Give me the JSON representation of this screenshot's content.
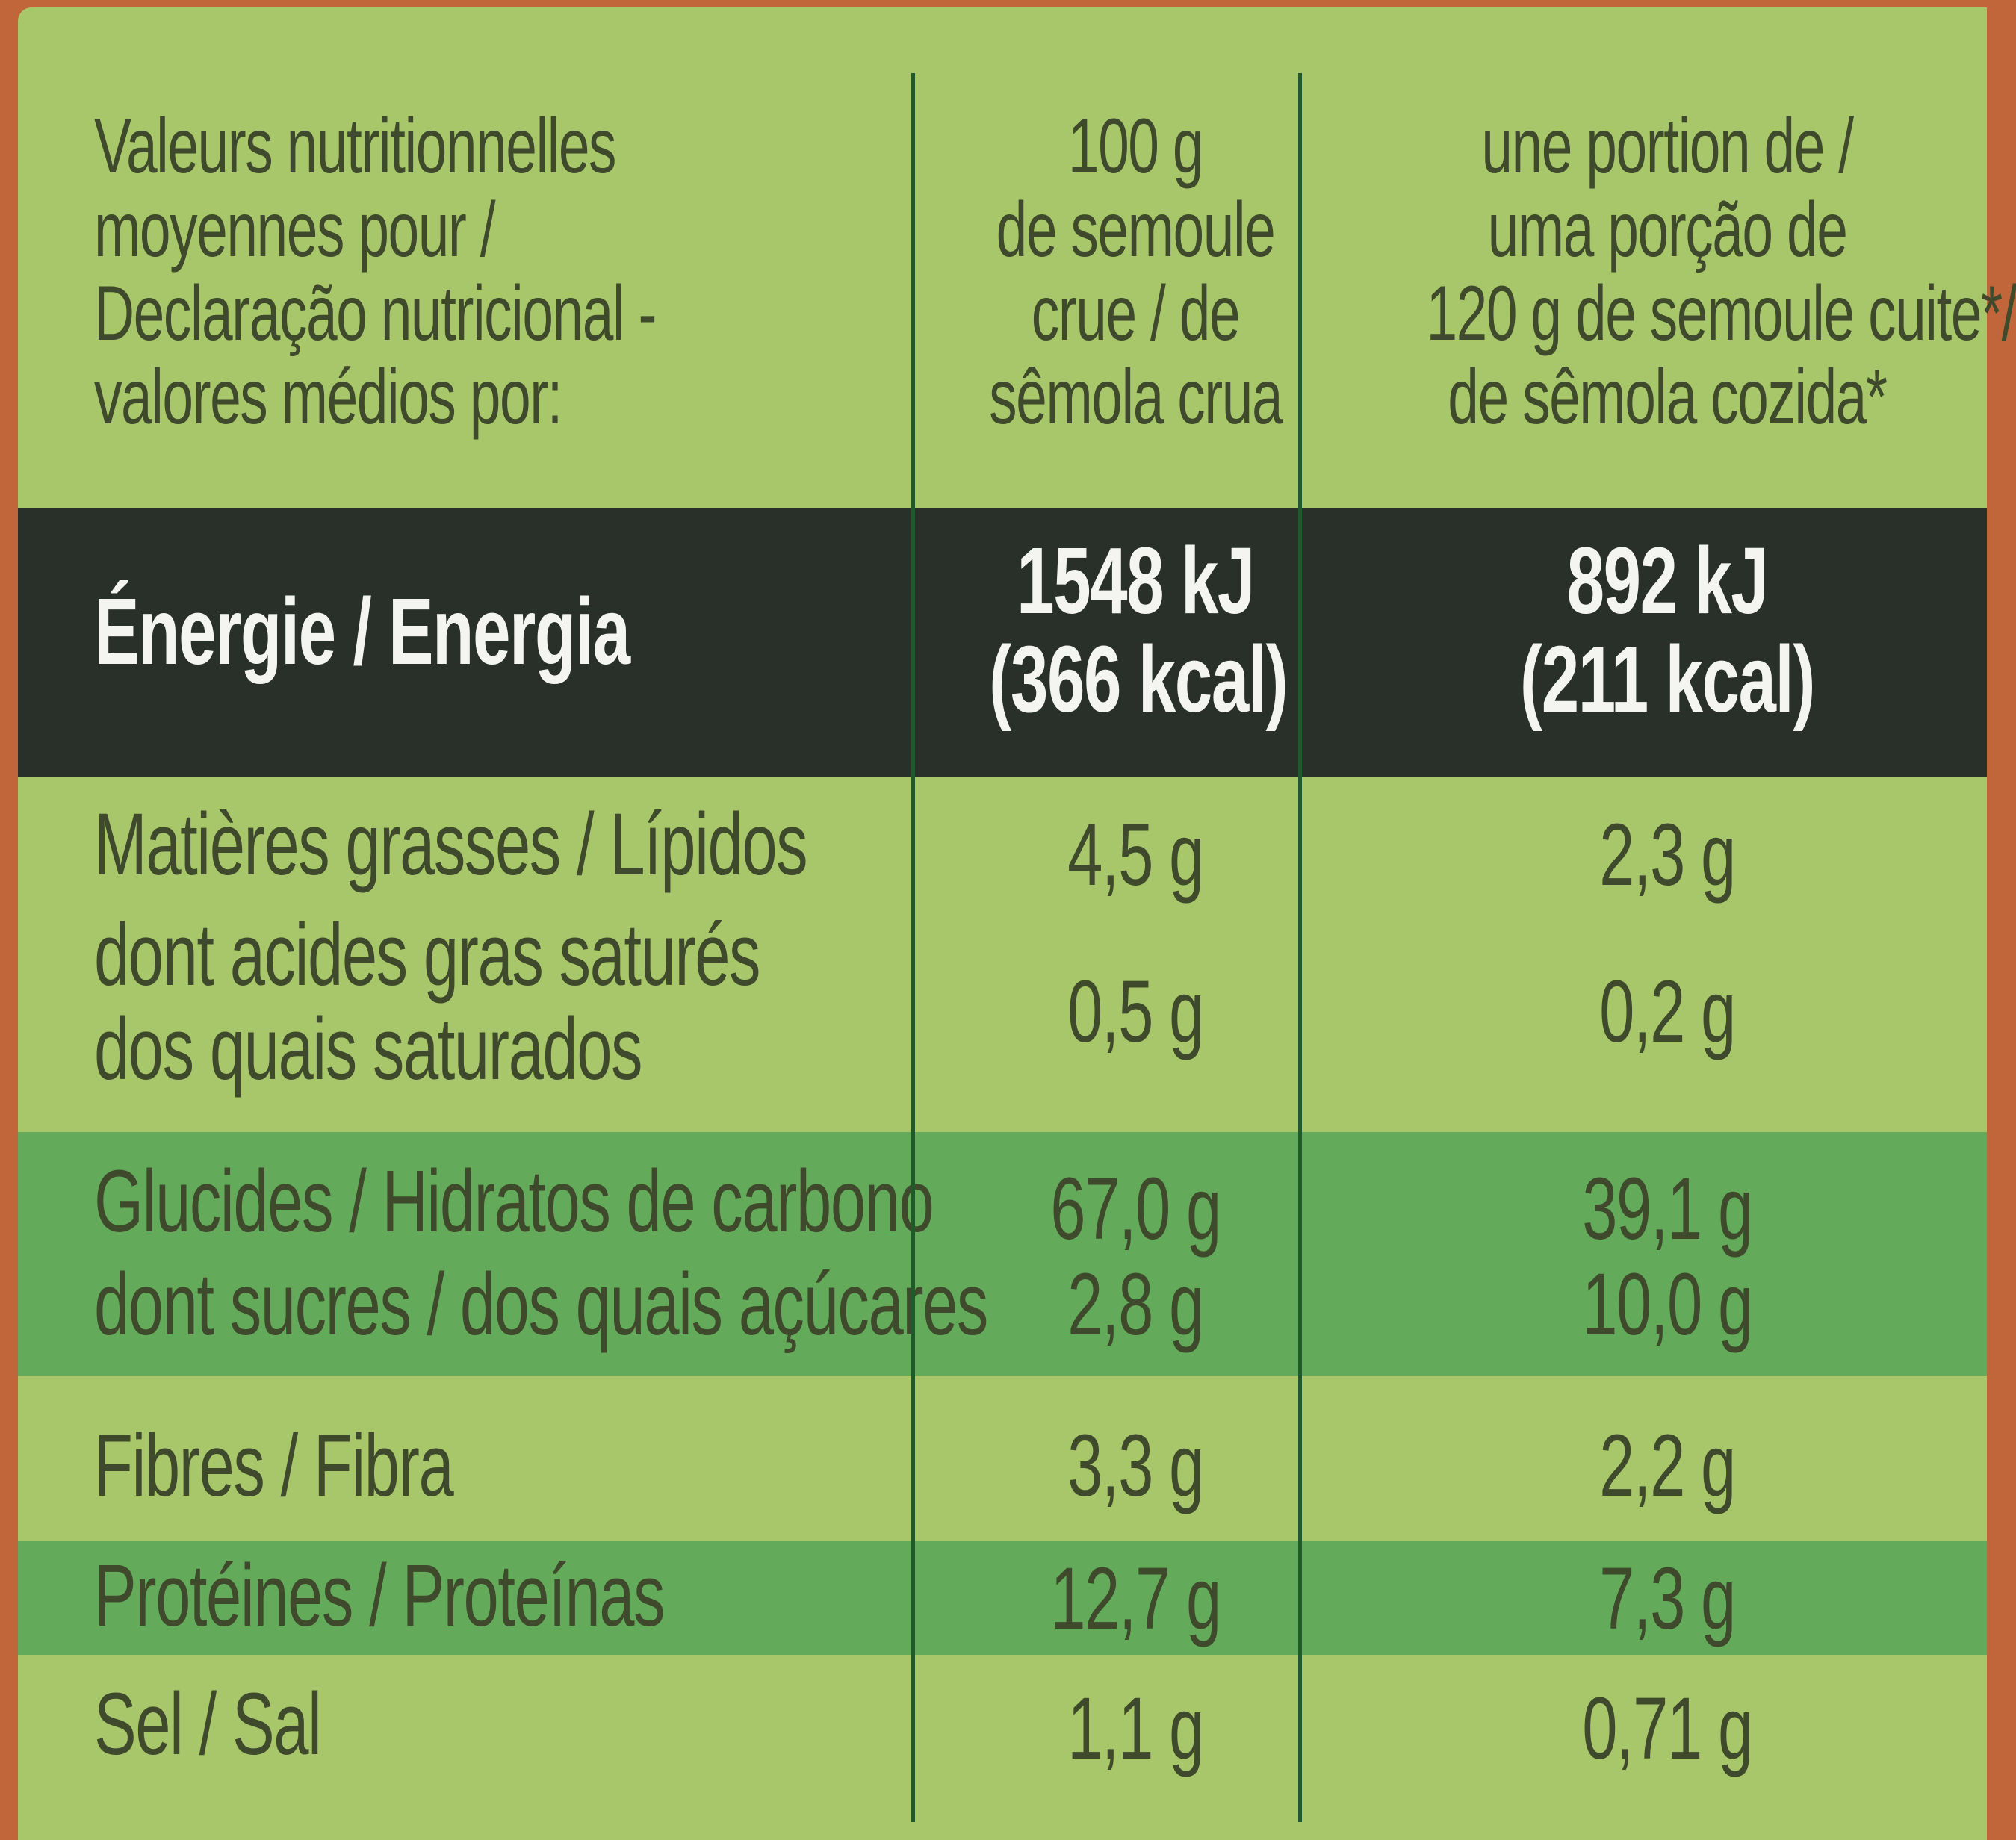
{
  "header": {
    "nutrient_title": [
      "Valeurs nutritionnelles",
      "moyennes pour /",
      "Declaração nutricional -",
      "valores médios por:"
    ],
    "col_100g": [
      "100 g",
      "de semoule",
      "crue / de",
      "sêmola crua"
    ],
    "col_portion": [
      "une portion de /",
      "uma porção de",
      "120 g de semoule cuite*/",
      "de sêmola cozida*"
    ]
  },
  "rows": {
    "energy": {
      "label": "Énergie / Energia",
      "v100": [
        "1548 kJ",
        "(366 kcal)"
      ],
      "vportion": [
        "892 kJ",
        "(211 kcal)"
      ]
    },
    "fat": {
      "label": "Matières grasses / Lípidos",
      "v100": "4,5 g",
      "vportion": "2,3 g"
    },
    "saturated": {
      "label": [
        "dont acides gras saturés",
        "dos quais saturados"
      ],
      "v100": "0,5 g",
      "vportion": "0,2 g"
    },
    "carbs": {
      "label": "Glucides / Hidratos de carbono",
      "v100": "67,0 g",
      "vportion": "39,1 g"
    },
    "sugars": {
      "label": "dont sucres / dos quais açúcares",
      "v100": "2,8 g",
      "vportion": "10,0 g"
    },
    "fibre": {
      "label": "Fibres / Fibra",
      "v100": "3,3 g",
      "vportion": "2,2 g"
    },
    "protein": {
      "label": "Protéines / Proteínas",
      "v100": "12,7 g",
      "vportion": "7,3 g"
    },
    "salt": {
      "label": "Sel / Sal",
      "v100": "1,1 g",
      "vportion": "0,71 g"
    }
  },
  "colors": {
    "panel": "#a7c76a",
    "energy_band": "#283029",
    "highlight_band": "#63aa5b",
    "text": "#3e4a2b",
    "background": "#c0663a"
  }
}
